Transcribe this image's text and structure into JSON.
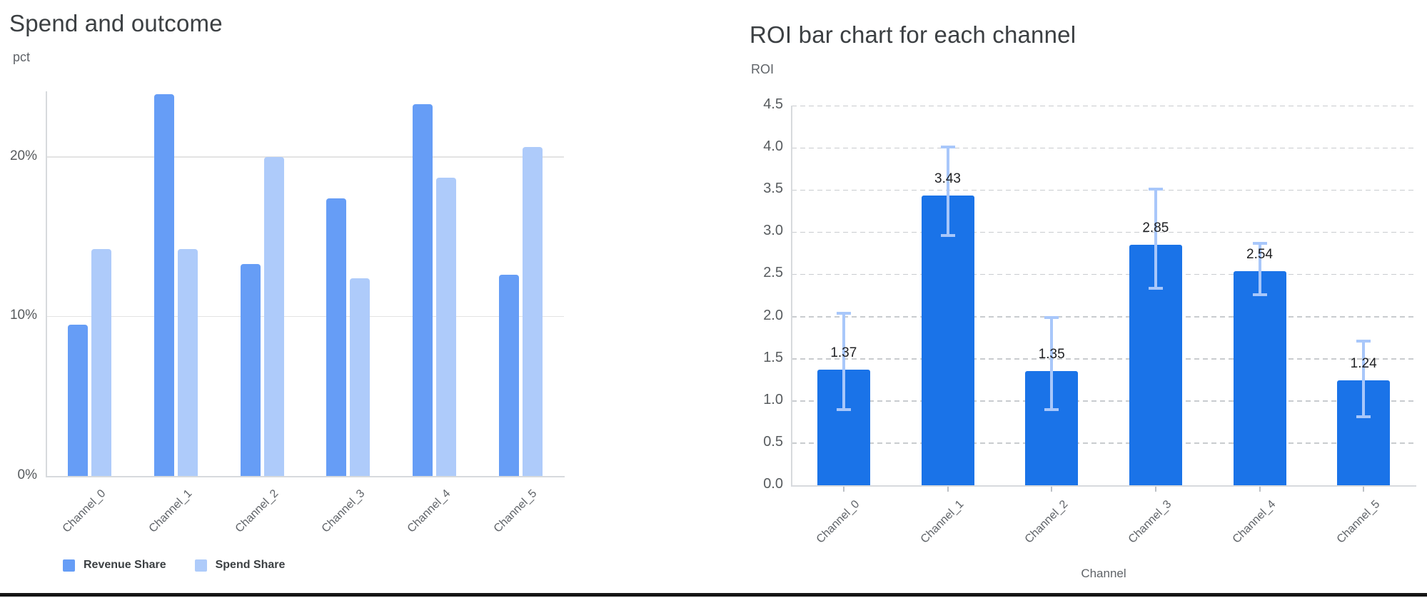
{
  "page": {
    "background": "#ffffff",
    "divider_color": "#161616"
  },
  "chart_data": [
    {
      "id": "spend-and-outcome",
      "type": "bar",
      "title": "Spend and outcome",
      "ylabel": "pct",
      "xlabel": "",
      "categories": [
        "Channel_0",
        "Channel_1",
        "Channel_2",
        "Channel_3",
        "Channel_4",
        "Channel_5"
      ],
      "series": [
        {
          "name": "Revenue Share",
          "color": "#669df6",
          "values": [
            9.5,
            23.9,
            13.3,
            17.4,
            23.3,
            12.6
          ]
        },
        {
          "name": "Spend Share",
          "color": "#aecbfa",
          "values": [
            14.2,
            14.2,
            20.0,
            12.4,
            18.7,
            20.6
          ]
        }
      ],
      "yticks": {
        "values": [
          0,
          10,
          20
        ],
        "labels": [
          "0%",
          "10%",
          "20%"
        ]
      },
      "ylim": [
        0,
        24.1
      ],
      "grid": "solid-horizontal",
      "legend_position": "bottom-left",
      "bar_corner_radius": 4
    },
    {
      "id": "roi-by-channel",
      "type": "bar",
      "title": "ROI bar chart for each channel",
      "ylabel": "ROI",
      "xlabel": "Channel",
      "categories": [
        "Channel_0",
        "Channel_1",
        "Channel_2",
        "Channel_3",
        "Channel_4",
        "Channel_5"
      ],
      "series": [
        {
          "name": "ROI",
          "color": "#1a73e8",
          "values": [
            1.37,
            3.43,
            1.35,
            2.85,
            2.54,
            1.24
          ],
          "data_labels": [
            "1.37",
            "3.43",
            "1.35",
            "2.85",
            "2.54",
            "1.24"
          ],
          "error_low": [
            0.89,
            2.95,
            0.89,
            2.33,
            2.25,
            0.8
          ],
          "error_high": [
            2.05,
            4.02,
            2.0,
            3.52,
            2.88,
            1.72
          ],
          "error_color": "#a8c7fa"
        }
      ],
      "yticks": {
        "values": [
          0,
          0.5,
          1,
          1.5,
          2,
          2.5,
          3,
          3.5,
          4,
          4.5
        ],
        "labels": [
          "0.0",
          "0.5",
          "1.0",
          "1.5",
          "2.0",
          "2.5",
          "3.0",
          "3.5",
          "4.0",
          "4.5"
        ]
      },
      "ylim": [
        0,
        4.5
      ],
      "grid": "dashed-horizontal",
      "legend_position": "none",
      "bar_corner_radius": 3
    }
  ],
  "colors": {
    "grid_solid": "#e3e3e3",
    "grid_dashed": "#c9cccf",
    "axis_line": "#d7dadd",
    "tick_mark": "#bdc1c6",
    "tick_label": "#575b5e",
    "x_label": "#5f6368",
    "value_label": "#202124",
    "title_text": "#3c4043"
  }
}
